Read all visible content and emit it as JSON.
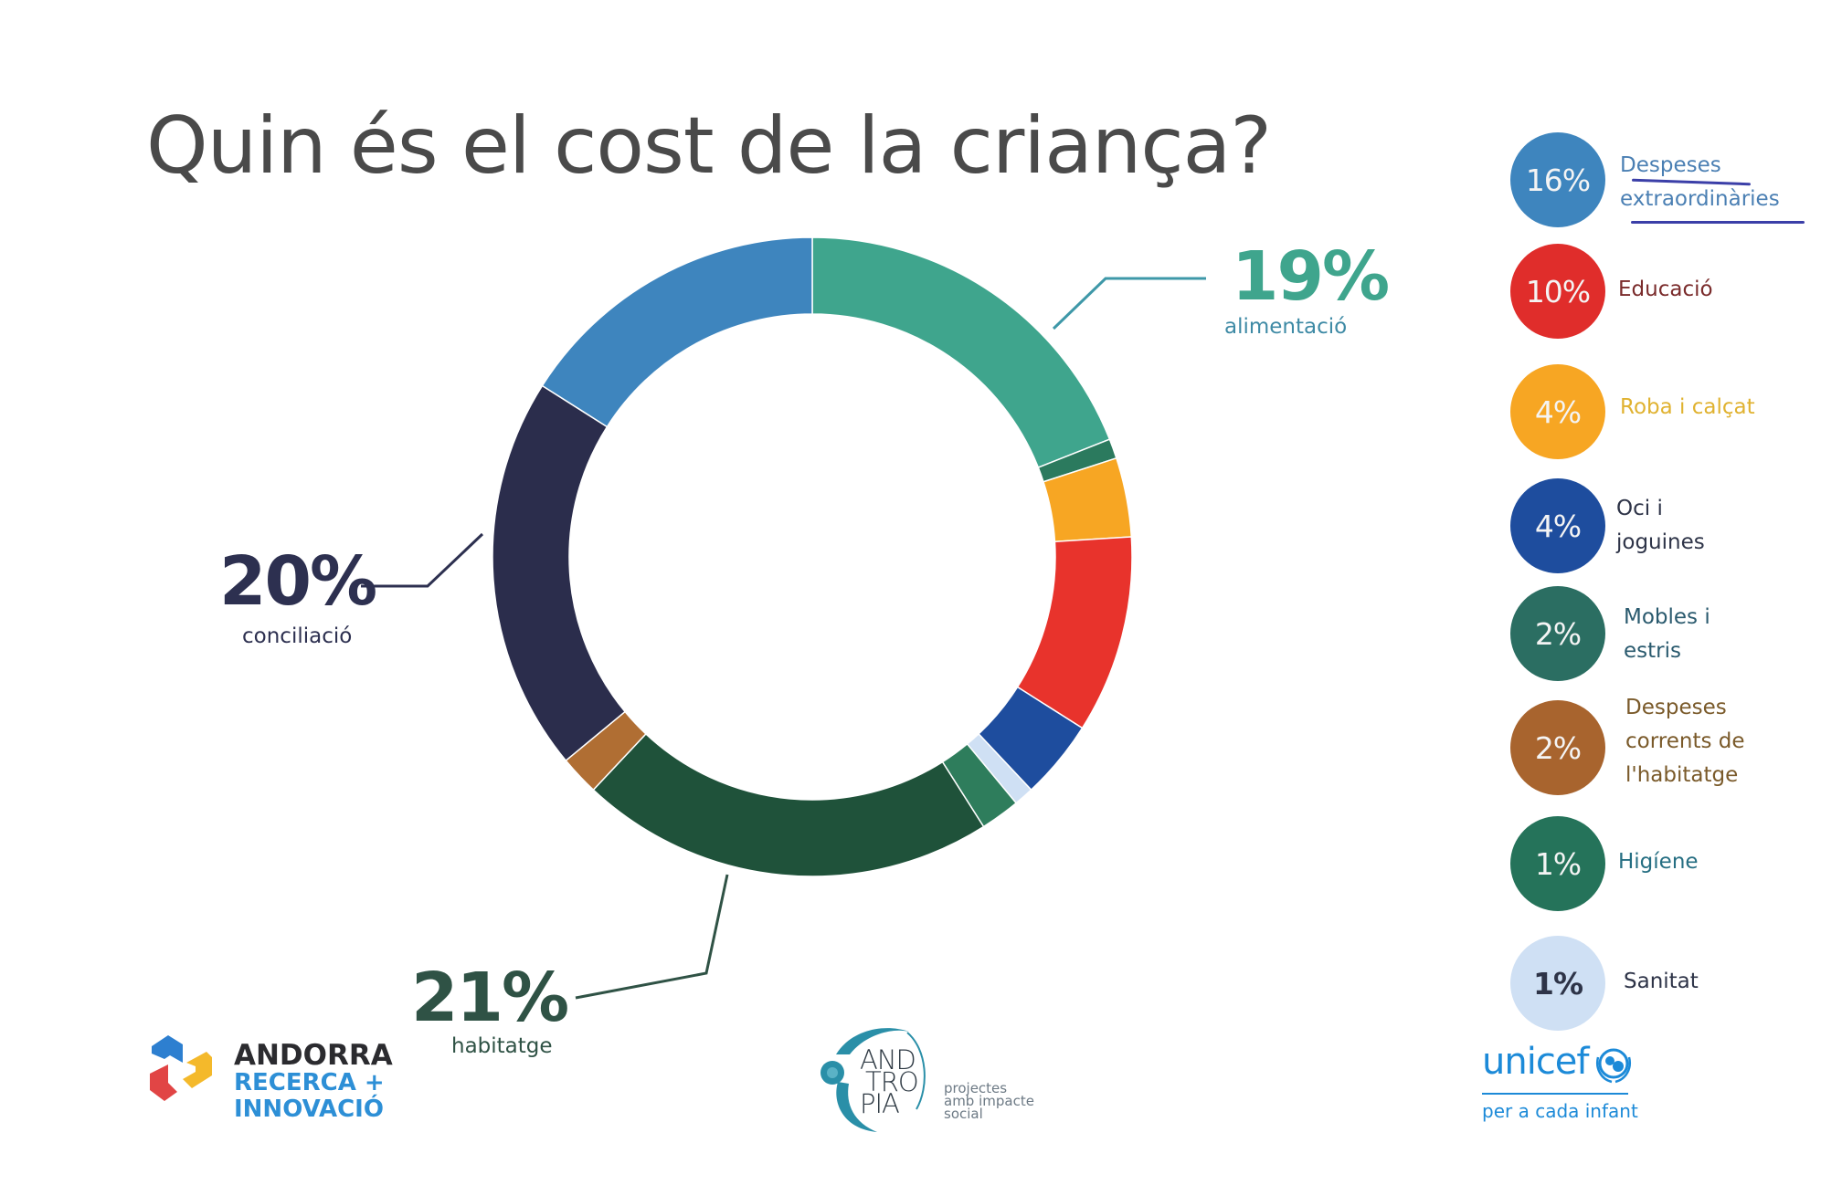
{
  "title": "Quin és el cost de la criança?",
  "chart_data": {
    "type": "pie",
    "variant": "donut",
    "title": "Quin és el cost de la criança?",
    "unit": "%",
    "start": "top",
    "direction": "clockwise",
    "slices": [
      {
        "key": "alimentacio",
        "label": "alimentació",
        "value": 19,
        "color": "#3fa58d"
      },
      {
        "key": "higiene",
        "label": "Higíene",
        "value": 1,
        "color": "#2b7a5e"
      },
      {
        "key": "roba",
        "label": "Roba i calçat",
        "value": 4,
        "color": "#f7a623"
      },
      {
        "key": "educacio",
        "label": "Educació",
        "value": 10,
        "color": "#e8332c"
      },
      {
        "key": "oci",
        "label": "Oci i joguines",
        "value": 4,
        "color": "#1e4d9e"
      },
      {
        "key": "sanitat",
        "label": "Sanitat",
        "value": 1,
        "color": "#cfe0f4"
      },
      {
        "key": "mobles",
        "label": "Mobles i estris",
        "value": 2,
        "color": "#2e7d5c"
      },
      {
        "key": "habitatge",
        "label": "habitatge",
        "value": 21,
        "color": "#1f523a"
      },
      {
        "key": "corrents",
        "label": "Despeses corrents de l'habitatge",
        "value": 2,
        "color": "#b06e33"
      },
      {
        "key": "conciliacio",
        "label": "conciliació",
        "value": 20,
        "color": "#2b2d4c"
      },
      {
        "key": "extraordinaries",
        "label": "Despeses extraordinàries",
        "value": 16,
        "color": "#3e85be"
      }
    ]
  },
  "callouts": {
    "alimentacio": {
      "pct": "19%",
      "name": "alimentació",
      "color": "#3fa58d"
    },
    "conciliacio": {
      "pct": "20%",
      "name": "conciliació",
      "color": "#2d3050"
    },
    "habitatge": {
      "pct": "21%",
      "name": "habitatge",
      "color": "#2f5245"
    }
  },
  "legend": [
    {
      "pct": "16%",
      "lines": [
        "Despeses",
        "extraordinàries"
      ],
      "dot_color": "#3e85be",
      "text_color": "#4a7fb3",
      "pct_color": "#f4f4f4"
    },
    {
      "pct": "10%",
      "lines": [
        "Educació"
      ],
      "dot_color": "#e02d2b",
      "text_color": "#7a2b2b",
      "pct_color": "#f4f4f4"
    },
    {
      "pct": "4%",
      "lines": [
        "Roba i calçat"
      ],
      "dot_color": "#f7a623",
      "text_color": "#e0b230",
      "pct_color": "#f4f4f4"
    },
    {
      "pct": "4%",
      "lines": [
        "Oci i",
        "joguines"
      ],
      "dot_color": "#1e4d9e",
      "text_color": "#2e3448",
      "pct_color": "#f4f4f4"
    },
    {
      "pct": "2%",
      "lines": [
        "Mobles i",
        "estris"
      ],
      "dot_color": "#2b6e62",
      "text_color": "#2a5a6e",
      "pct_color": "#f4f4f4"
    },
    {
      "pct": "2%",
      "lines": [
        "Despeses",
        "corrents de",
        "l'habitatge"
      ],
      "dot_color": "#a8642e",
      "text_color": "#7a5a2a",
      "pct_color": "#f4f4f4"
    },
    {
      "pct": "1%",
      "lines": [
        "Higíene"
      ],
      "dot_color": "#25735a",
      "text_color": "#256e82",
      "pct_color": "#f4f4f4"
    },
    {
      "pct": "1%",
      "lines": [
        "Sanitat"
      ],
      "dot_color": "#cfe0f4",
      "text_color": "#2e3448",
      "pct_color": "#2e3448"
    }
  ],
  "logos": {
    "andorra": {
      "line1": "ANDORRA",
      "line2": "RECERCA +",
      "line3": "INNOVACIÓ"
    },
    "antropia": {
      "word": [
        "AND",
        "TRO",
        "PIA"
      ],
      "tagline": [
        "projectes",
        "amb impacte",
        "social"
      ]
    },
    "unicef": {
      "word": "unicef",
      "tagline": "per a cada infant"
    }
  }
}
